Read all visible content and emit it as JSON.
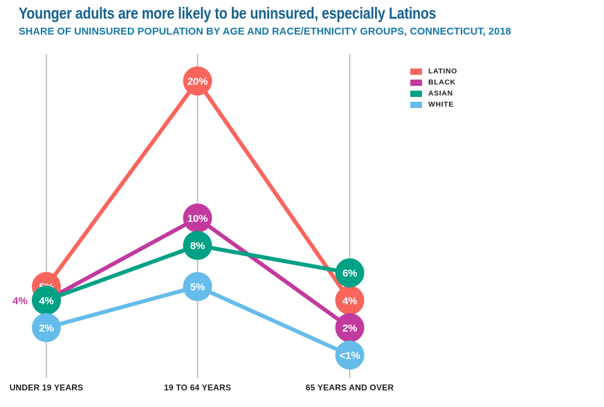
{
  "header": {
    "title": "Younger adults are more likely to be uninsured, especially Latinos",
    "subtitle": "SHARE OF UNINSURED POPULATION BY AGE AND RACE/ETHNICITY GROUPS, CONNECTICUT, 2018"
  },
  "legend": {
    "items": [
      {
        "label": "LATINO",
        "color": "#F7655C"
      },
      {
        "label": "BLACK",
        "color": "#C23A9E"
      },
      {
        "label": "ASIAN",
        "color": "#00A185"
      },
      {
        "label": "WHITE",
        "color": "#65BCEA"
      }
    ]
  },
  "chart_data": {
    "type": "line",
    "title": "Younger adults are more likely to be uninsured, especially Latinos",
    "subtitle": "SHARE OF UNINSURED POPULATION BY AGE AND RACE/ETHNICITY GROUPS, CONNECTICUT, 2018",
    "categories": [
      "UNDER 19 YEARS",
      "19 TO 64 YEARS",
      "65 YEARS AND OVER"
    ],
    "series": [
      {
        "name": "LATINO",
        "color": "#F7655C",
        "values": [
          5,
          20,
          4
        ],
        "labels": [
          "5%",
          "20%",
          "4%"
        ]
      },
      {
        "name": "BLACK",
        "color": "#C23A9E",
        "values": [
          4,
          10,
          2
        ],
        "labels": [
          "4%",
          "10%",
          "2%"
        ]
      },
      {
        "name": "ASIAN",
        "color": "#00A185",
        "values": [
          4,
          8,
          6
        ],
        "labels": [
          "4%",
          "8%",
          "6%"
        ]
      },
      {
        "name": "WHITE",
        "color": "#65BCEA",
        "values": [
          2,
          5,
          0
        ],
        "labels": [
          "2%",
          "5%",
          "<1%"
        ]
      }
    ],
    "callout": {
      "text": "4%",
      "series_index": 1,
      "point_index": 0
    },
    "xlabel": "",
    "ylabel": "",
    "ylim": [
      0,
      22
    ],
    "grid": "vertical-only",
    "legend_position": "top-right",
    "point_label_color": "#FFFFFF",
    "tick_label_color": "#1E1E1E",
    "gridline_color": "#B6B6BA"
  }
}
